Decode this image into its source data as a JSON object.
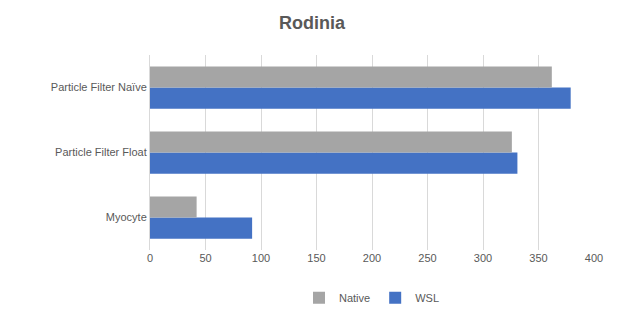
{
  "chart_data": {
    "type": "bar",
    "title": "Rodinia",
    "orientation": "horizontal",
    "categories": [
      "Myocyte",
      "Particle Filter Float",
      "Particle Filter Naïve"
    ],
    "series": [
      {
        "name": "Native",
        "color": "#a5a5a5",
        "values": [
          42,
          326,
          362
        ]
      },
      {
        "name": "WSL",
        "color": "#4472c4",
        "values": [
          92,
          331,
          379
        ]
      }
    ],
    "xlim": [
      0,
      400
    ],
    "xticks": [
      0,
      50,
      100,
      150,
      200,
      250,
      300,
      350,
      400
    ],
    "grid": true,
    "legend": "bottom"
  }
}
